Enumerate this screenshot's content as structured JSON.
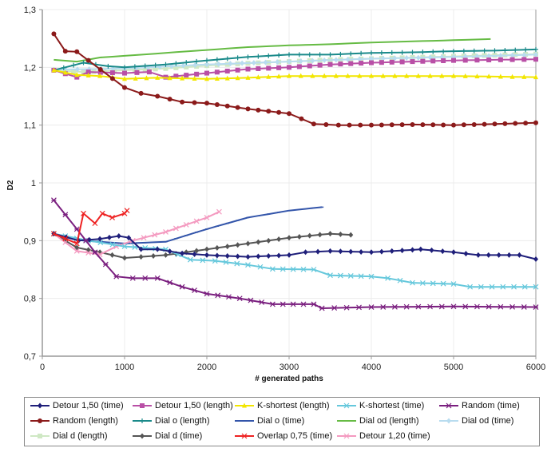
{
  "chart_data": {
    "type": "line",
    "title": "",
    "xlabel": "# generated paths",
    "ylabel": "D2",
    "xlim": [
      0,
      6000
    ],
    "ylim": [
      0.7,
      1.3
    ],
    "xticks": [
      "0",
      "1000",
      "2000",
      "3000",
      "4000",
      "5000",
      "6000"
    ],
    "yticks": [
      "0,7",
      "0,8",
      "0,9",
      "1",
      "1,1",
      "1,2",
      "1,3"
    ],
    "grid": true,
    "legend_position": "bottom",
    "series": [
      {
        "name": "Detour 1,50 (time)",
        "color": "#1f1f7a",
        "marker": "diamond",
        "x": [
          140,
          440,
          700,
          930,
          1050,
          1200,
          1400,
          1700,
          2000,
          2500,
          3000,
          3200,
          3500,
          4000,
          4500,
          4600,
          5000,
          5300,
          5800,
          6000
        ],
        "y": [
          0.912,
          0.9,
          0.903,
          0.908,
          0.905,
          0.885,
          0.885,
          0.878,
          0.875,
          0.872,
          0.875,
          0.88,
          0.882,
          0.88,
          0.884,
          0.885,
          0.88,
          0.875,
          0.875,
          0.868
        ]
      },
      {
        "name": "Detour 1,50 (length)",
        "color": "#b94fa6",
        "marker": "square",
        "x": [
          140,
          420,
          560,
          1000,
          1300,
          1500,
          2000,
          2500,
          3000,
          3500,
          4000,
          4500,
          5000,
          6000
        ],
        "y": [
          1.195,
          1.183,
          1.192,
          1.19,
          1.192,
          1.183,
          1.19,
          1.197,
          1.2,
          1.205,
          1.208,
          1.21,
          1.212,
          1.214
        ]
      },
      {
        "name": "K-shortest (length)",
        "color": "#f2e600",
        "marker": "triangle",
        "x": [
          140,
          420,
          700,
          1000,
          1400,
          2000,
          2500,
          3000,
          4000,
          5000,
          6000
        ],
        "y": [
          1.195,
          1.187,
          1.185,
          1.18,
          1.182,
          1.18,
          1.182,
          1.185,
          1.185,
          1.185,
          1.183
        ]
      },
      {
        "name": "K-shortest (time)",
        "color": "#66c8dc",
        "marker": "x",
        "x": [
          140,
          560,
          1000,
          1500,
          1800,
          2100,
          2500,
          2800,
          3300,
          3500,
          4000,
          4200,
          4500,
          5000,
          5200,
          6000
        ],
        "y": [
          0.912,
          0.9,
          0.89,
          0.885,
          0.867,
          0.865,
          0.858,
          0.851,
          0.85,
          0.84,
          0.838,
          0.835,
          0.827,
          0.825,
          0.82,
          0.82
        ]
      },
      {
        "name": "Random (time)",
        "color": "#7a1f7f",
        "marker": "star",
        "x": [
          140,
          420,
          640,
          900,
          1100,
          1400,
          1700,
          2000,
          2400,
          2800,
          3300,
          3400,
          4000,
          5000,
          6000
        ],
        "y": [
          0.97,
          0.92,
          0.88,
          0.838,
          0.835,
          0.835,
          0.82,
          0.808,
          0.8,
          0.79,
          0.79,
          0.783,
          0.785,
          0.786,
          0.785
        ]
      },
      {
        "name": "Random (length)",
        "color": "#8b1a1a",
        "marker": "circle",
        "x": [
          140,
          280,
          420,
          560,
          1000,
          1200,
          1400,
          1700,
          2000,
          2500,
          3000,
          3300,
          3600,
          4000,
          4500,
          5000,
          5500,
          6000
        ],
        "y": [
          1.258,
          1.228,
          1.227,
          1.212,
          1.165,
          1.155,
          1.15,
          1.14,
          1.138,
          1.128,
          1.12,
          1.102,
          1.1,
          1.1,
          1.101,
          1.1,
          1.102,
          1.104
        ]
      },
      {
        "name": "Dial o (length)",
        "color": "#1a8a8a",
        "marker": "plus",
        "x": [
          140,
          500,
          800,
          1000,
          1500,
          2000,
          2500,
          3000,
          3500,
          4000,
          4500,
          5000,
          5500,
          6000
        ],
        "y": [
          1.195,
          1.208,
          1.202,
          1.2,
          1.205,
          1.212,
          1.218,
          1.222,
          1.222,
          1.225,
          1.226,
          1.228,
          1.229,
          1.231
        ]
      },
      {
        "name": "Dial o (time)",
        "color": "#3355aa",
        "marker": "dash",
        "x": [
          140,
          500,
          1000,
          1500,
          2000,
          2500,
          3000,
          3400
        ],
        "y": [
          0.912,
          0.9,
          0.895,
          0.898,
          0.92,
          0.94,
          0.952,
          0.958
        ]
      },
      {
        "name": "Dial od (length)",
        "color": "#66bb44",
        "marker": "dash",
        "x": [
          140,
          420,
          700,
          1000,
          1500,
          2000,
          2500,
          3000,
          3500,
          4000,
          4500,
          5000,
          5450
        ],
        "y": [
          1.213,
          1.21,
          1.217,
          1.22,
          1.225,
          1.23,
          1.235,
          1.238,
          1.24,
          1.243,
          1.245,
          1.247,
          1.249
        ]
      },
      {
        "name": "Dial od (time)",
        "color": "#b8dcef",
        "marker": "diamond",
        "x": [
          140,
          1000,
          2000,
          3000,
          4000,
          5000,
          6000
        ],
        "y": [
          1.196,
          1.198,
          1.205,
          1.21,
          1.215,
          1.218,
          1.222
        ]
      },
      {
        "name": "Dial d (length)",
        "color": "#cfe8c4",
        "marker": "square",
        "x": [
          140,
          500,
          1000,
          1500,
          2000,
          2500,
          3000,
          3500,
          4000,
          4500,
          5000,
          5500,
          6000
        ],
        "y": [
          1.195,
          1.192,
          1.195,
          1.198,
          1.203,
          1.207,
          1.21,
          1.213,
          1.215,
          1.217,
          1.219,
          1.221,
          1.223
        ]
      },
      {
        "name": "Dial d (time)",
        "color": "#555555",
        "marker": "diamond",
        "x": [
          140,
          420,
          700,
          1000,
          1200,
          1500,
          2000,
          2500,
          3000,
          3500,
          3750
        ],
        "y": [
          0.912,
          0.888,
          0.88,
          0.87,
          0.872,
          0.875,
          0.885,
          0.895,
          0.905,
          0.912,
          0.91
        ]
      },
      {
        "name": "Overlap 0,75 (time)",
        "color": "#ee2222",
        "marker": "x",
        "x": [
          140,
          420,
          500,
          640,
          730,
          850,
          1000,
          1030
        ],
        "y": [
          0.912,
          0.895,
          0.947,
          0.93,
          0.947,
          0.94,
          0.947,
          0.952
        ]
      },
      {
        "name": "Detour 1,20 (time)",
        "color": "#f49ac0",
        "marker": "x",
        "x": [
          140,
          420,
          700,
          900,
          1100,
          1500,
          2000,
          2150
        ],
        "y": [
          0.912,
          0.882,
          0.876,
          0.89,
          0.9,
          0.915,
          0.94,
          0.95
        ]
      }
    ]
  }
}
